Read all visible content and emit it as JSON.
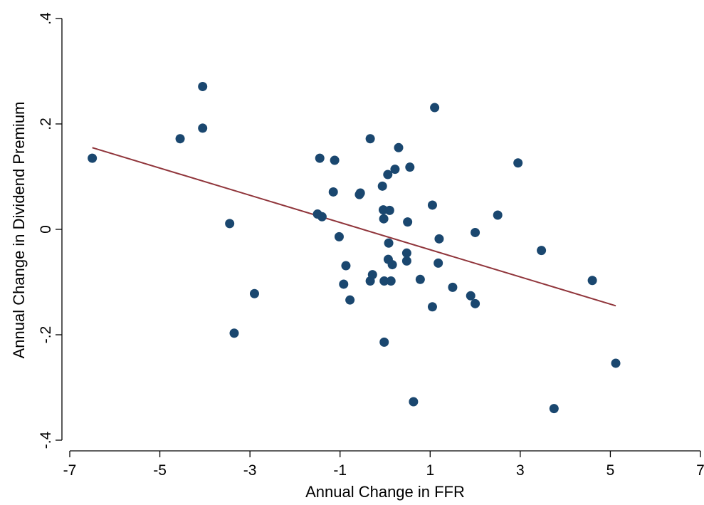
{
  "chart_data": {
    "type": "scatter",
    "xlabel": "Annual Change in FFR",
    "ylabel": "Annual Change in Dividend Premium",
    "xlim": [
      -7,
      7
    ],
    "ylim": [
      -0.4,
      0.4
    ],
    "xticks": [
      -7,
      -5,
      -3,
      -1,
      1,
      3,
      5,
      7
    ],
    "xtick_labels": [
      "-7",
      "-5",
      "-3",
      "-1",
      "1",
      "3",
      "5",
      "7"
    ],
    "yticks": [
      -0.4,
      -0.2,
      0,
      0.2,
      0.4
    ],
    "ytick_labels": [
      "-.4",
      "-.2",
      "0",
      ".2",
      ".4"
    ],
    "grid": false,
    "legend": "none",
    "marker_color": "#1a476f",
    "fit_line_color": "#90353b",
    "series": [
      {
        "points": [
          [
            -6.5,
            0.135
          ],
          [
            -4.55,
            0.172
          ],
          [
            -4.05,
            0.271
          ],
          [
            -4.05,
            0.192
          ],
          [
            -3.45,
            0.011
          ],
          [
            -3.35,
            -0.197
          ],
          [
            -2.9,
            -0.122
          ],
          [
            -1.5,
            0.029
          ],
          [
            -1.45,
            0.135
          ],
          [
            -1.4,
            0.024
          ],
          [
            -1.15,
            0.071
          ],
          [
            -1.12,
            0.131
          ],
          [
            -1.02,
            -0.014
          ],
          [
            -0.92,
            -0.104
          ],
          [
            -0.87,
            -0.069
          ],
          [
            -0.78,
            -0.134
          ],
          [
            -0.57,
            0.066
          ],
          [
            -0.55,
            0.069
          ],
          [
            -0.33,
            0.172
          ],
          [
            -0.33,
            -0.098
          ],
          [
            -0.28,
            -0.086
          ],
          [
            -0.06,
            0.082
          ],
          [
            -0.04,
            0.037
          ],
          [
            -0.03,
            0.02
          ],
          [
            -0.02,
            -0.098
          ],
          [
            -0.02,
            -0.214
          ],
          [
            0.06,
            0.104
          ],
          [
            0.07,
            -0.057
          ],
          [
            0.08,
            -0.026
          ],
          [
            0.1,
            0.036
          ],
          [
            0.13,
            -0.098
          ],
          [
            0.16,
            -0.067
          ],
          [
            0.22,
            0.114
          ],
          [
            0.3,
            0.155
          ],
          [
            0.48,
            -0.045
          ],
          [
            0.48,
            -0.06
          ],
          [
            0.5,
            0.014
          ],
          [
            0.55,
            0.118
          ],
          [
            0.63,
            -0.327
          ],
          [
            0.78,
            -0.095
          ],
          [
            1.05,
            0.046
          ],
          [
            1.05,
            -0.147
          ],
          [
            1.1,
            0.231
          ],
          [
            1.18,
            -0.064
          ],
          [
            1.2,
            -0.018
          ],
          [
            1.5,
            -0.11
          ],
          [
            1.9,
            -0.126
          ],
          [
            2.0,
            -0.006
          ],
          [
            2.0,
            -0.141
          ],
          [
            2.5,
            0.027
          ],
          [
            2.95,
            0.126
          ],
          [
            3.47,
            -0.04
          ],
          [
            3.75,
            -0.34
          ],
          [
            4.6,
            -0.097
          ],
          [
            5.12,
            -0.254
          ]
        ]
      }
    ],
    "fit_line": {
      "x": [
        -6.5,
        5.12
      ],
      "y": [
        0.155,
        -0.145
      ]
    }
  }
}
